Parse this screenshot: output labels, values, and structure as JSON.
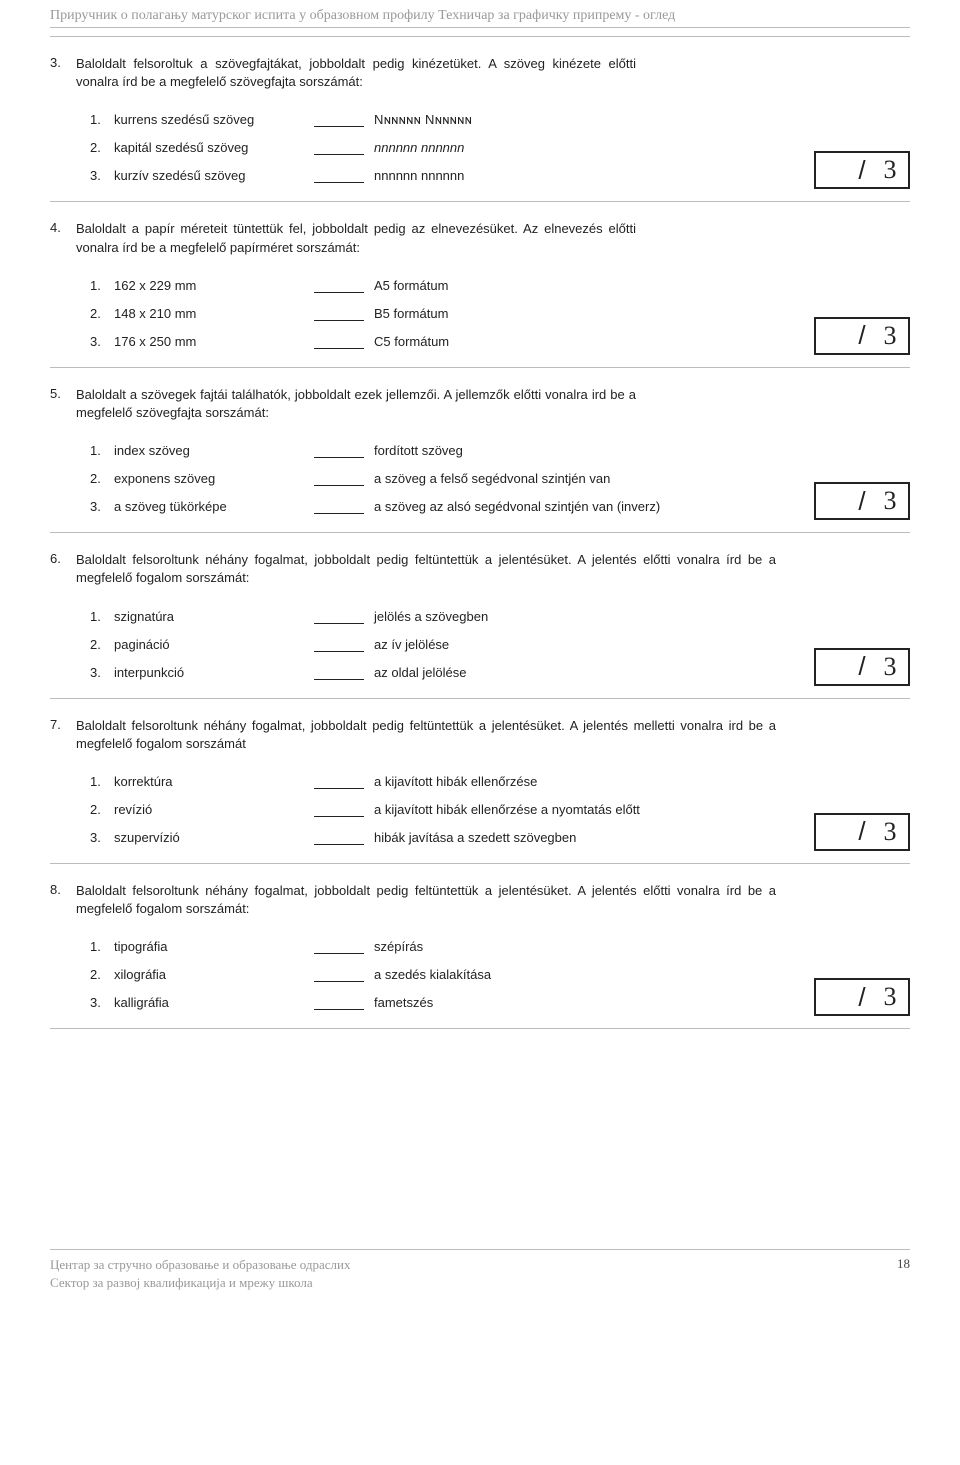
{
  "header": {
    "title": "Приручник о полагању матурског испита у образовном профилу Техничар за графичку припрему - оглед"
  },
  "score": {
    "max": "3"
  },
  "questions": [
    {
      "num": "3.",
      "text": "Baloldalt felsoroltuk a szövegfajtákat, jobboldalt pedig kinézetüket. A szöveg kinézete előtti vonalra írd be a megfelelő szövegfajta sorszámát:",
      "wide": false,
      "items": [
        {
          "n": "1.",
          "left": "kurrens szedésű szöveg",
          "right": "Nɴɴɴɴɴ Nɴɴɴɴɴ",
          "cls": "smallcaps"
        },
        {
          "n": "2.",
          "left": "kapitál szedésű szöveg",
          "right": "nnnnnn nnnnnn",
          "cls": "italic"
        },
        {
          "n": "3.",
          "left": "kurzív szedésű szöveg",
          "right": "nnnnnn nnnnnn",
          "cls": ""
        }
      ]
    },
    {
      "num": "4.",
      "text": "Baloldalt a papír méreteit tüntettük fel, jobboldalt pedig az elnevezésüket. Az elnevezés előtti vonalra írd be a megfelelő papírméret sorszámát:",
      "wide": false,
      "items": [
        {
          "n": "1.",
          "left": "162 x 229 mm",
          "right": "A5 formátum",
          "cls": ""
        },
        {
          "n": "2.",
          "left": "148 x 210 mm",
          "right": "B5 formátum",
          "cls": ""
        },
        {
          "n": "3.",
          "left": "176 x 250 mm",
          "right": "C5 formátum",
          "cls": ""
        }
      ]
    },
    {
      "num": "5.",
      "text": "Baloldalt a szövegek fajtái találhatók, jobboldalt ezek jellemzői. A jellemzők előtti vonalra ird be a megfelelő szövegfajta sorszámát:",
      "wide": false,
      "items": [
        {
          "n": "1.",
          "left": "index szöveg",
          "right": "fordított szöveg",
          "cls": ""
        },
        {
          "n": "2.",
          "left": "exponens szöveg",
          "right": "a szöveg a felső segédvonal szintjén van",
          "cls": ""
        },
        {
          "n": "3.",
          "left": "a szöveg tükörképe",
          "right": "a szöveg az alsó segédvonal szintjén van (inverz)",
          "cls": ""
        }
      ]
    },
    {
      "num": "6.",
      "text": "Baloldalt felsoroltunk néhány fogalmat, jobboldalt pedig feltüntettük a jelentésüket. A jelentés előtti vonalra írd be a megfelelő fogalom sorszámát:",
      "wide": true,
      "items": [
        {
          "n": "1.",
          "left": "szignatúra",
          "right": "jelölés a szövegben",
          "cls": ""
        },
        {
          "n": "2.",
          "left": "pagináció",
          "right": "az ív jelölése",
          "cls": ""
        },
        {
          "n": "3.",
          "left": "interpunkció",
          "right": "az oldal jelölése",
          "cls": ""
        }
      ]
    },
    {
      "num": "7.",
      "text": "Baloldalt felsoroltunk néhány fogalmat, jobboldalt pedig feltüntettük a jelentésüket. A jelentés melletti vonalra ird be a megfelelő fogalom sorszámát",
      "wide": true,
      "items": [
        {
          "n": "1.",
          "left": "korrektúra",
          "right": "a kijavított hibák ellenőrzése",
          "cls": ""
        },
        {
          "n": "2.",
          "left": "revízió",
          "right": "a kijavított hibák ellenőrzése a nyomtatás előtt",
          "cls": ""
        },
        {
          "n": "3.",
          "left": "szupervízió",
          "right": "hibák javítása a szedett szövegben",
          "cls": ""
        }
      ]
    },
    {
      "num": "8.",
      "text": "Baloldalt felsoroltunk néhány fogalmat, jobboldalt pedig feltüntettük a jelentésüket. A jelentés előtti vonalra írd be a megfelelő fogalom sorszámát:",
      "wide": true,
      "items": [
        {
          "n": "1.",
          "left": "tipográfia",
          "right": "szépírás",
          "cls": ""
        },
        {
          "n": "2.",
          "left": "xilográfia",
          "right": "a szedés kialakítása",
          "cls": ""
        },
        {
          "n": "3.",
          "left": "kalligráfia",
          "right": "fametszés",
          "cls": ""
        }
      ]
    }
  ],
  "footer": {
    "line1": "Центар за стручно образовање и образовање одраслих",
    "line2": "Сектор за развој квалификација и мрежу школа",
    "page": "18"
  }
}
